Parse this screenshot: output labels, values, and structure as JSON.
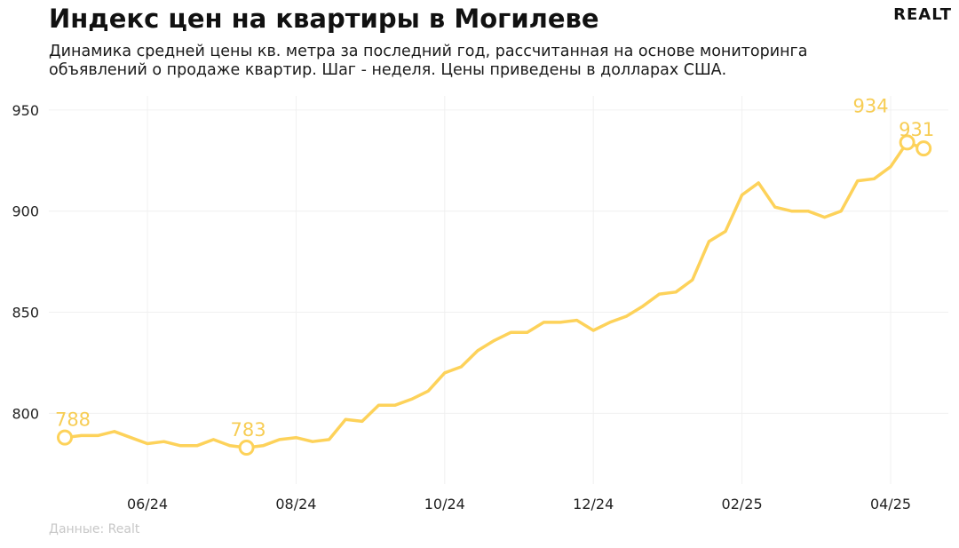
{
  "header": {
    "title": "Индекс цен на квартиры в Могилеве",
    "subtitle": "Динамика средней цены кв. метра за последний год, рассчитанная на основе мониторинга объявлений о продаже квартир. Шаг - неделя. Цены приведены в долларах США.",
    "logo": "REALT"
  },
  "footer": {
    "source": "Данные: Realt"
  },
  "colors": {
    "line": "#fdd25a",
    "label": "#f7cd55",
    "grid": "#f0f0f0",
    "axis_text": "#222222"
  },
  "chart_data": {
    "type": "line",
    "title": "Индекс цен на квартиры в Могилеве",
    "xlabel": "",
    "ylabel": "",
    "ylim": [
      765,
      957
    ],
    "yticks": [
      800,
      850,
      900,
      950
    ],
    "xticks": [
      {
        "index": 5,
        "label": "06/24"
      },
      {
        "index": 14,
        "label": "08/24"
      },
      {
        "index": 23,
        "label": "10/24"
      },
      {
        "index": 32,
        "label": "12/24"
      },
      {
        "index": 41,
        "label": "02/25"
      },
      {
        "index": 50,
        "label": "04/25"
      }
    ],
    "grid": true,
    "values": [
      788,
      789,
      789,
      791,
      788,
      785,
      786,
      784,
      784,
      787,
      784,
      783,
      784,
      787,
      788,
      786,
      787,
      797,
      796,
      804,
      804,
      807,
      811,
      820,
      823,
      831,
      836,
      840,
      840,
      845,
      845,
      846,
      841,
      845,
      848,
      853,
      859,
      860,
      866,
      885,
      890,
      908,
      914,
      902,
      900,
      900,
      897,
      900,
      915,
      916,
      922,
      934,
      931
    ],
    "markers": [
      {
        "index": 0,
        "value": 788,
        "label": "788"
      },
      {
        "index": 11,
        "value": 783,
        "label": "783"
      },
      {
        "index": 51,
        "value": 934,
        "label": "934"
      },
      {
        "index": 52,
        "value": 931,
        "label": "931"
      }
    ]
  }
}
